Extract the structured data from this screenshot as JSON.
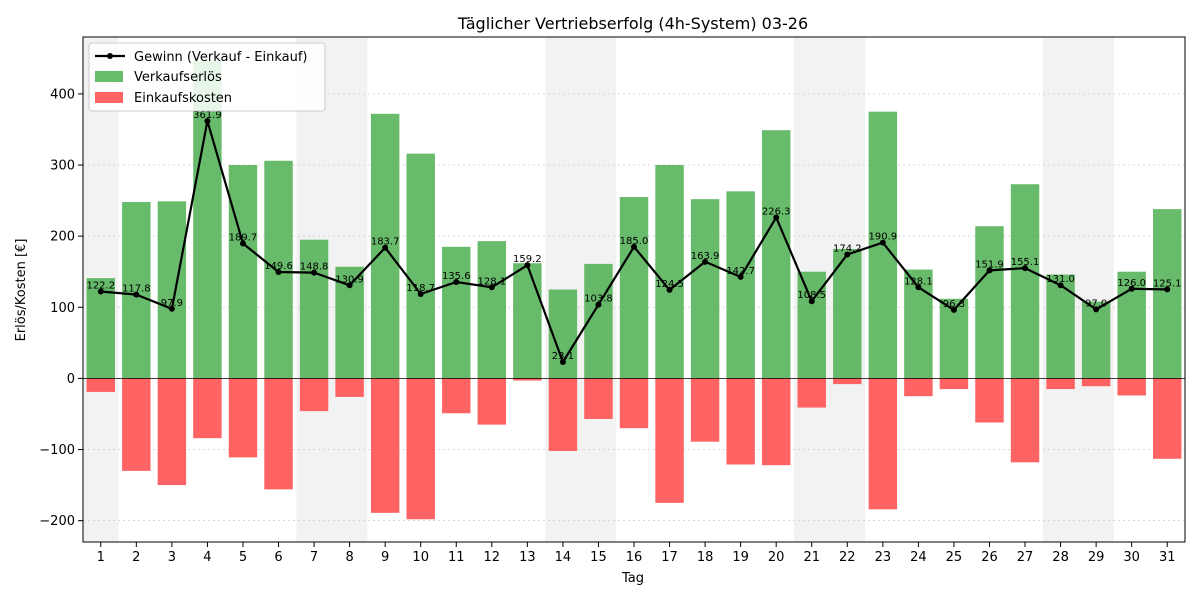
{
  "chart_data": {
    "type": "bar",
    "title": "Täglicher Vertriebserfolg (4h-System) 03-26",
    "xlabel": "Tag",
    "ylabel": "Erlös/Kosten [€]",
    "ylim": [
      -230,
      480
    ],
    "yticks": [
      -200,
      -100,
      0,
      100,
      200,
      300,
      400
    ],
    "grid": "horizontal dotted",
    "legend_position": "top-left",
    "categories": [
      "1",
      "2",
      "3",
      "4",
      "5",
      "6",
      "7",
      "8",
      "9",
      "10",
      "11",
      "12",
      "13",
      "14",
      "15",
      "16",
      "17",
      "18",
      "19",
      "20",
      "21",
      "22",
      "23",
      "24",
      "25",
      "26",
      "27",
      "28",
      "29",
      "30",
      "31"
    ],
    "weekend_days": [
      1,
      7,
      8,
      14,
      15,
      21,
      22,
      28,
      29
    ],
    "series": [
      {
        "name": "Verkaufserlös",
        "type": "bar",
        "color": "#4caf50",
        "values": [
          141,
          248,
          249,
          446,
          300,
          306,
          195,
          157,
          372,
          316,
          185,
          193,
          162,
          125,
          161,
          255,
          300,
          252,
          263,
          349,
          150,
          182,
          375,
          153,
          112,
          214,
          273,
          146,
          108,
          150,
          238
        ]
      },
      {
        "name": "Einkaufskosten",
        "type": "bar",
        "color": "#ff5252",
        "values": [
          -19,
          -130,
          -150,
          -84,
          -111,
          -156,
          -46,
          -26,
          -189,
          -198,
          -49,
          -65,
          -3,
          -102,
          -57,
          -70,
          -175,
          -89,
          -121,
          -122,
          -41,
          -8,
          -184,
          -25,
          -15,
          -62,
          -118,
          -15,
          -11,
          -24,
          -113
        ]
      },
      {
        "name": "Gewinn (Verkauf - Einkauf)",
        "type": "line",
        "color": "#000000",
        "values": [
          122.2,
          117.8,
          97.9,
          361.9,
          189.7,
          149.6,
          148.8,
          130.9,
          183.7,
          118.7,
          135.6,
          128.1,
          159.2,
          23.1,
          103.8,
          185.0,
          124.5,
          163.9,
          142.7,
          226.3,
          108.5,
          174.2,
          190.9,
          128.1,
          96.3,
          151.9,
          155.1,
          131.0,
          97.0,
          126.0,
          125.1
        ]
      }
    ],
    "data_labels": [
      "122.2",
      "117.8",
      "97.9",
      "361.9",
      "189.7",
      "149.6",
      "148.8",
      "130.9",
      "183.7",
      "118.7",
      "135.6",
      "128.1",
      "159.2",
      "23.1",
      "103.8",
      "185.0",
      "124.5",
      "163.9",
      "142.7",
      "226.3",
      "108.5",
      "174.2",
      "190.9",
      "128.1",
      "96.3",
      "151.9",
      "155.1",
      "131.0",
      "97.0",
      "126.0",
      "125.1"
    ]
  }
}
